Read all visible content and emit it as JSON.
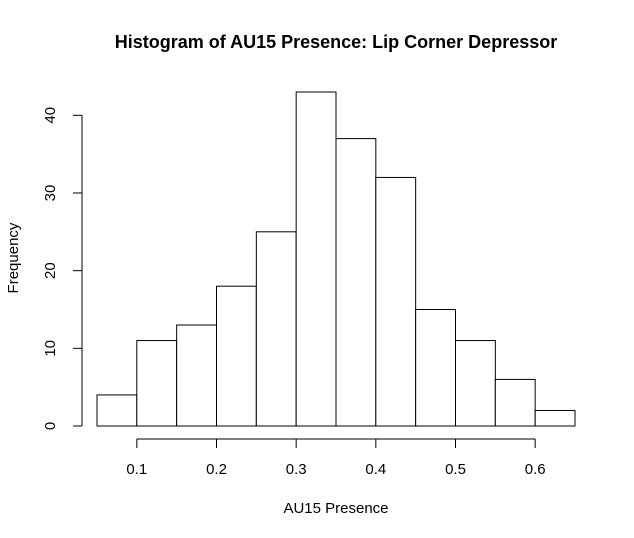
{
  "chart_data": {
    "type": "bar",
    "title": "Histogram of AU15 Presence: Lip Corner Depressor",
    "xlabel": "AU15 Presence",
    "ylabel": "Frequency",
    "bins": [
      [
        0.05,
        0.1
      ],
      [
        0.1,
        0.15
      ],
      [
        0.15,
        0.2
      ],
      [
        0.2,
        0.25
      ],
      [
        0.25,
        0.3
      ],
      [
        0.3,
        0.35
      ],
      [
        0.35,
        0.4
      ],
      [
        0.4,
        0.45
      ],
      [
        0.45,
        0.5
      ],
      [
        0.5,
        0.55
      ],
      [
        0.55,
        0.6
      ],
      [
        0.6,
        0.65
      ]
    ],
    "values": [
      4,
      11,
      13,
      18,
      25,
      43,
      37,
      32,
      15,
      11,
      6,
      2
    ],
    "xlim": [
      0.05,
      0.65
    ],
    "ylim": [
      0,
      43
    ],
    "x_ticks": [
      "0.1",
      "0.2",
      "0.3",
      "0.4",
      "0.5",
      "0.6"
    ],
    "y_ticks": [
      "0",
      "10",
      "20",
      "30",
      "40"
    ],
    "grid": false,
    "bar_fill": "#ffffff",
    "bar_stroke": "#000000"
  }
}
